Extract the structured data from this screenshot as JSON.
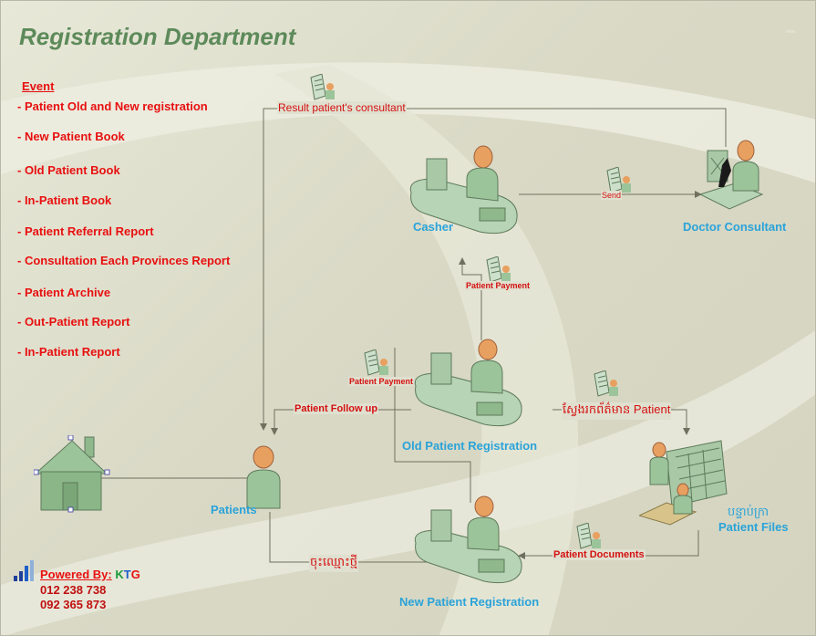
{
  "title": "Registration Department",
  "events": {
    "heading": "Event",
    "items": [
      "- Patient Old and New registration",
      "- New Patient Book",
      "- Old Patient Book",
      "- In-Patient Book",
      "- Patient Referral Report",
      "- Consultation Each Provinces Report",
      "- Patient Archive",
      "- Out-Patient Report",
      "- In-Patient Report"
    ]
  },
  "nodes": {
    "casher": "Casher",
    "doctor": "Doctor Consultant",
    "patients": "Patients",
    "old_reg": "Old Patient Registration",
    "new_reg": "New Patient Registration",
    "files_kh": "បន្ទាប់ក្រា",
    "files": "Patient Files"
  },
  "edges": {
    "result_consultant": "Result patient's consultant",
    "send": "Send",
    "payment_top": "Patient Payment",
    "payment_left": "Patient Payment",
    "follow_up": "Patient Follow up",
    "search_info": "ស្វែងរកព័ត៌មាន Patient",
    "register_new": "ចុះឈ្មោះថ្មី",
    "patient_documents": "Patient Documents"
  },
  "footer": {
    "powered_by": "Powered By:",
    "brand_k": "K",
    "brand_t": "T",
    "brand_g": "G",
    "phone1": "012 238 738",
    "phone2": "092 365 873"
  },
  "colors": {
    "title": "#5d8a5a",
    "event_text": "#e81010",
    "node_label": "#2aa3d9",
    "figure_green": "#9cc49a",
    "figure_head": "#e8a060",
    "arrow": "#707060"
  }
}
